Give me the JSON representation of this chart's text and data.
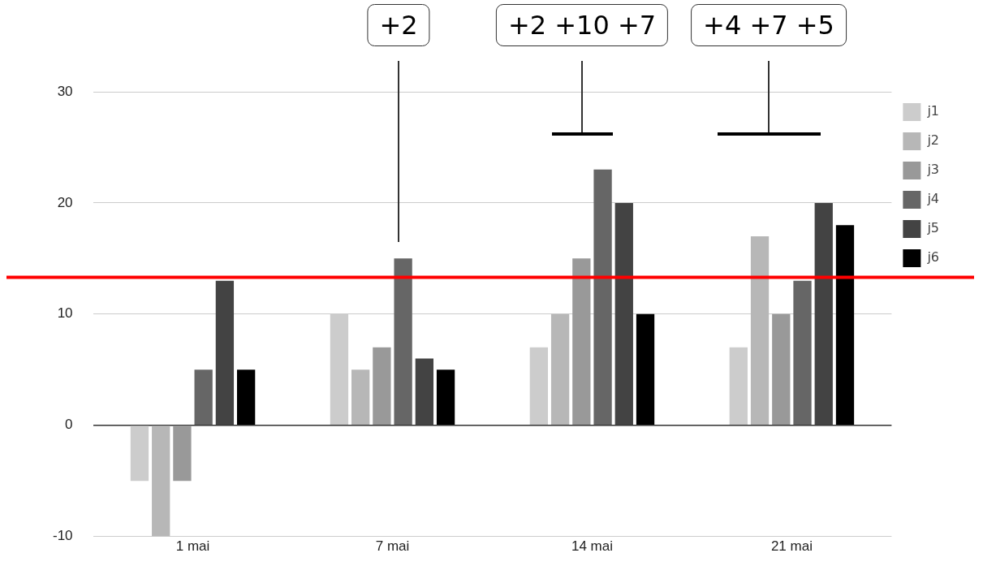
{
  "chart_data": {
    "type": "bar",
    "categories": [
      "1 mai",
      "7 mai",
      "14 mai",
      "21 mai"
    ],
    "series": [
      {
        "name": "j1",
        "color": "#cccccc",
        "values": [
          -5,
          10,
          7,
          7
        ]
      },
      {
        "name": "j2",
        "color": "#b7b7b7",
        "values": [
          -10,
          5,
          10,
          17
        ]
      },
      {
        "name": "j3",
        "color": "#999999",
        "values": [
          -5,
          7,
          15,
          10
        ]
      },
      {
        "name": "j4",
        "color": "#666666",
        "values": [
          5,
          15,
          23,
          13
        ]
      },
      {
        "name": "j5",
        "color": "#434343",
        "values": [
          13,
          6,
          20,
          20
        ]
      },
      {
        "name": "j6",
        "color": "#000000",
        "values": [
          5,
          5,
          10,
          18
        ]
      }
    ],
    "ylim": [
      -10,
      30
    ],
    "yticks": [
      -10,
      0,
      10,
      20,
      30
    ],
    "grid": "y",
    "legend": "right",
    "ref_lines": [
      {
        "axis": "y",
        "value": 13.3,
        "color": "#ff0000"
      }
    ],
    "annotations": [
      "+2",
      "+2 +10 +7",
      "+4 +7 +5"
    ]
  }
}
